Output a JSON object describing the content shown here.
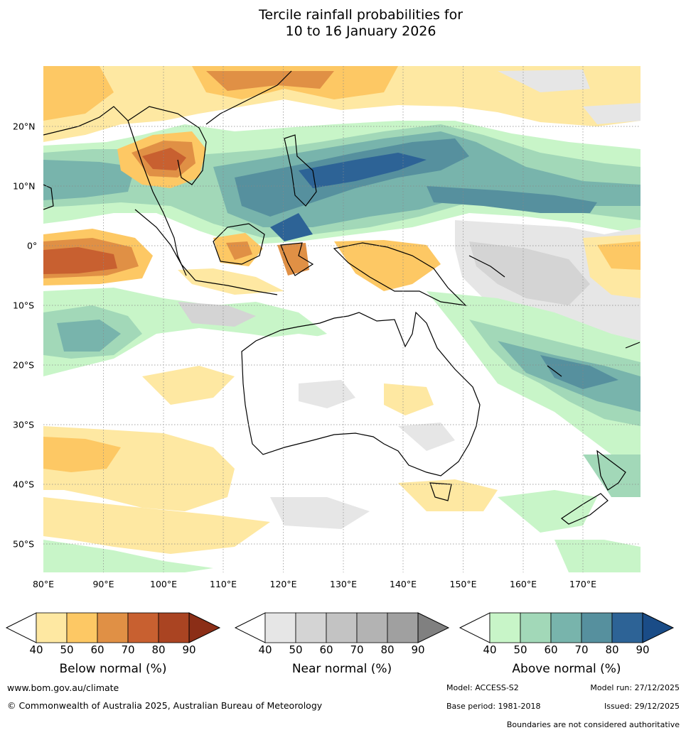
{
  "title": {
    "line1": "Tercile rainfall probabilities for",
    "line2": "10 to 16 January 2026"
  },
  "map": {
    "lon_labels": [
      "80°E",
      "90°E",
      "100°E",
      "110°E",
      "120°E",
      "130°E",
      "140°E",
      "150°E",
      "160°E",
      "170°E"
    ],
    "lat_labels": [
      "20°N",
      "10°N",
      "0°",
      "10°S",
      "20°S",
      "30°S",
      "40°S",
      "50°S"
    ],
    "ocean_color": "#ffffff",
    "coast_color": "#000000",
    "border_color": "#888888"
  },
  "colorbars": [
    {
      "title": "Below normal (%)",
      "ticks": [
        "40",
        "50",
        "60",
        "70",
        "80",
        "90"
      ],
      "colors": [
        "#ffffff",
        "#fee8a2",
        "#fdc864",
        "#e09045",
        "#c86030",
        "#aa4422",
        "#8b2e17"
      ]
    },
    {
      "title": "Near normal (%)",
      "ticks": [
        "40",
        "50",
        "60",
        "70",
        "80",
        "90"
      ],
      "colors": [
        "#ffffff",
        "#e6e6e6",
        "#d4d4d4",
        "#c3c3c3",
        "#b3b3b3",
        "#a0a0a0",
        "#808080"
      ]
    },
    {
      "title": "Above normal (%)",
      "ticks": [
        "40",
        "50",
        "60",
        "70",
        "80",
        "90"
      ],
      "colors": [
        "#ffffff",
        "#c8f5c8",
        "#a2d8b8",
        "#78b4ac",
        "#56909e",
        "#2d6396",
        "#1a4c87"
      ]
    }
  ],
  "footer": {
    "url": "www.bom.gov.au/climate",
    "copyright": "© Commonwealth of Australia 2025, Australian Bureau of Meteorology",
    "model": "Model: ACCESS-S2",
    "base_period": "Base period: 1981-2018",
    "model_run": "Model run: 27/12/2025",
    "issued": "Issued: 29/12/2025",
    "disclaimer": "Boundaries are not considered authoritative"
  }
}
